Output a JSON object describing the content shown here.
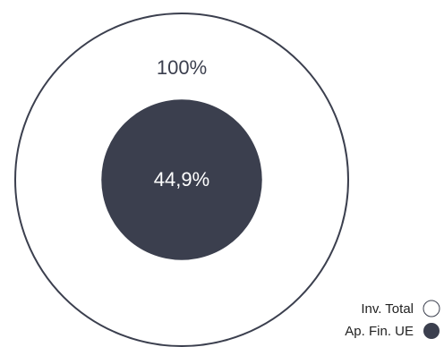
{
  "chart_data": {
    "type": "nested-circle",
    "series": [
      {
        "name": "Inv. Total",
        "value": 100,
        "label": "100%",
        "fill": "#ffffff",
        "stroke": "#3b3f4e"
      },
      {
        "name": "Ap. Fin. UE",
        "value": 44.9,
        "label": "44,9%",
        "fill": "#3b3f4e",
        "stroke": "#3b3f4e"
      }
    ],
    "legend_position": "bottom-right",
    "colors": {
      "dark": "#3b3f4e",
      "light": "#ffffff",
      "text_on_light": "#3b3f4e",
      "text_on_dark": "#ffffff",
      "legend_text": "#222222"
    }
  }
}
